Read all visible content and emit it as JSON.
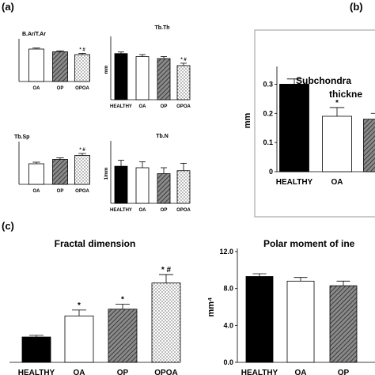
{
  "panel_labels": [
    "(a)",
    "(b)",
    "(c)"
  ],
  "chart_data": [
    {
      "id": "a1",
      "type": "bar",
      "title": "B.Ar/T.Ar",
      "categories": [
        "OA",
        "OP",
        "OPOA"
      ],
      "values": [
        0.82,
        0.75,
        0.68
      ],
      "errors": [
        0.025,
        0.025,
        0.03
      ],
      "fills": [
        "white",
        "hatch",
        "dots"
      ],
      "annotations": [
        "",
        "",
        "* #"
      ],
      "ylim": [
        0,
        1
      ],
      "yticks": [],
      "ylabel": "",
      "xlabel": "",
      "legend": "none"
    },
    {
      "id": "a2",
      "type": "bar",
      "title": "Tb.Th",
      "categories": [
        "HEALTHY",
        "OA",
        "OP",
        "OPOA"
      ],
      "values": [
        0.23,
        0.215,
        0.205,
        0.17
      ],
      "errors": [
        0.008,
        0.01,
        0.01,
        0.012
      ],
      "fills": [
        "black",
        "white",
        "hatch",
        "dots"
      ],
      "annotations": [
        "",
        "",
        "",
        "* #"
      ],
      "ylim": [
        0,
        0.3
      ],
      "yticks": [],
      "ylabel": "mm",
      "xlabel": "",
      "legend": "none"
    },
    {
      "id": "a3",
      "type": "bar",
      "title": "Tb.Sp",
      "categories": [
        "OA",
        "OP",
        "OPOA"
      ],
      "values": [
        0.52,
        0.63,
        0.73
      ],
      "errors": [
        0.04,
        0.04,
        0.05
      ],
      "fills": [
        "white",
        "hatch",
        "dots"
      ],
      "annotations": [
        "",
        "",
        "* #"
      ],
      "ylim": [
        0,
        1
      ],
      "yticks": [],
      "ylabel": "",
      "xlabel": "",
      "legend": "none"
    },
    {
      "id": "a4",
      "type": "bar",
      "title": "Tb.N",
      "categories": [
        "HEALTHY",
        "OA",
        "OP",
        "OPOA"
      ],
      "values": [
        2.35,
        2.34,
        2.3,
        2.32
      ],
      "errors": [
        0.04,
        0.04,
        0.04,
        0.05
      ],
      "fills": [
        "black",
        "white",
        "hatch",
        "dots"
      ],
      "annotations": [
        "",
        "",
        "",
        ""
      ],
      "ylim": [
        2.1,
        2.5
      ],
      "yticks": [],
      "ylabel": "1/mm",
      "xlabel": "",
      "legend": "none"
    },
    {
      "id": "b",
      "type": "bar",
      "title": "Subchondra  thickne",
      "categories": [
        "HEALTHY",
        "OA",
        "O"
      ],
      "values": [
        0.3,
        0.19,
        0.18
      ],
      "errors": [
        0.018,
        0.03,
        0.02
      ],
      "fills": [
        "black",
        "white",
        "hatch"
      ],
      "annotations": [
        "",
        "*",
        "*"
      ],
      "ylim": [
        0,
        0.35
      ],
      "yticks": [
        "0",
        "0.1",
        "0.2",
        "0.3"
      ],
      "ytick_values": [
        0,
        0.1,
        0.2,
        0.3
      ],
      "ylabel": "mm",
      "xlabel": "",
      "legend": "none"
    },
    {
      "id": "c1",
      "type": "bar",
      "title": "Fractal dimension",
      "categories": [
        "HEALTHY",
        "OA",
        "OP",
        "OPOA"
      ],
      "values": [
        1.3,
        1.55,
        1.63,
        1.94
      ],
      "errors": [
        0.02,
        0.07,
        0.06,
        0.1
      ],
      "fills": [
        "black",
        "white",
        "hatch",
        "dots"
      ],
      "annotations": [
        "",
        "*",
        "*",
        "* #"
      ],
      "ylim": [
        1.0,
        2.2
      ],
      "yticks": [],
      "ylabel": "",
      "xlabel": "",
      "legend": "none"
    },
    {
      "id": "c2",
      "type": "bar",
      "title": "Polar moment of ine",
      "categories": [
        "HEALTHY",
        "OA",
        "OP"
      ],
      "values": [
        9.3,
        8.8,
        8.3
      ],
      "errors": [
        0.3,
        0.4,
        0.5
      ],
      "fills": [
        "black",
        "white",
        "hatch"
      ],
      "annotations": [
        "",
        "",
        ""
      ],
      "ylim": [
        0,
        12
      ],
      "yticks": [
        "0.0",
        "4.0",
        "8.0",
        "12.0"
      ],
      "ytick_values": [
        0,
        4,
        8,
        12
      ],
      "ylabel": "mm⁴",
      "xlabel": "",
      "legend": "none"
    }
  ]
}
